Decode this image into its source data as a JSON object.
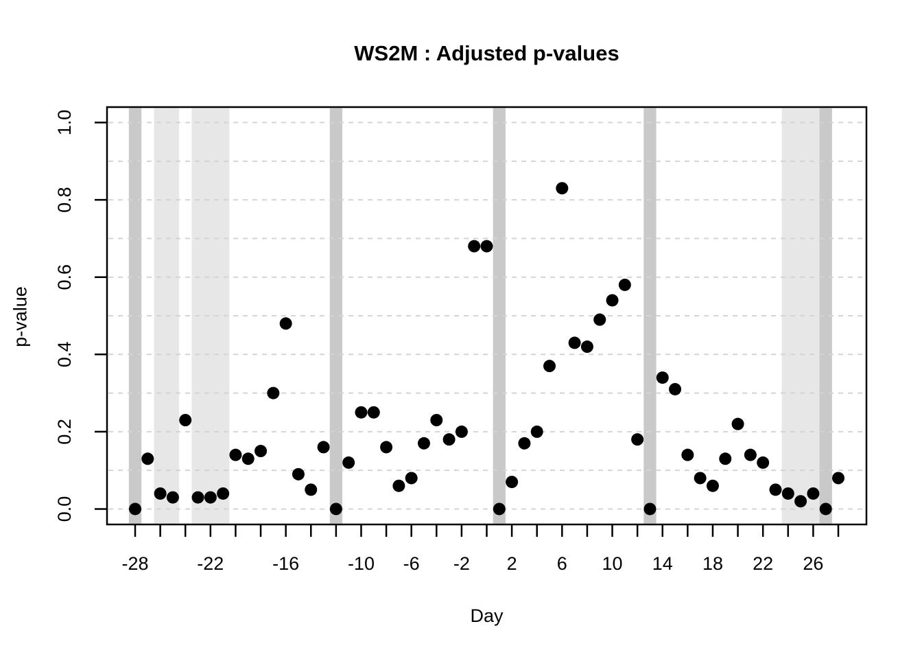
{
  "chart_data": {
    "type": "scatter",
    "title": "WS2M : Adjusted p-values",
    "xlabel": "Day",
    "ylabel": "p-value",
    "xlim": [
      -30.24,
      30.24
    ],
    "ylim": [
      -0.04,
      1.04
    ],
    "grid": true,
    "legend_position": "none",
    "x": [
      -28,
      -27,
      -26,
      -25,
      -24,
      -23,
      -22,
      -21,
      -20,
      -19,
      -18,
      -17,
      -16,
      -15,
      -14,
      -13,
      -12,
      -11,
      -10,
      -9,
      -8,
      -7,
      -6,
      -5,
      -4,
      -3,
      -2,
      -1,
      0,
      1,
      2,
      3,
      4,
      5,
      6,
      7,
      8,
      9,
      10,
      11,
      12,
      13,
      14,
      15,
      16,
      17,
      18,
      19,
      20,
      21,
      22,
      23,
      24,
      25,
      26,
      27,
      28
    ],
    "y": [
      0.0,
      0.13,
      0.04,
      0.03,
      0.23,
      0.03,
      0.03,
      0.04,
      0.14,
      0.13,
      0.15,
      0.3,
      0.48,
      0.09,
      0.05,
      0.16,
      0.0,
      0.12,
      0.25,
      0.25,
      0.16,
      0.06,
      0.08,
      0.17,
      0.23,
      0.18,
      0.2,
      0.68,
      0.68,
      0.0,
      0.07,
      0.17,
      0.2,
      0.37,
      0.83,
      0.43,
      0.42,
      0.49,
      0.54,
      0.58,
      0.18,
      0.0,
      0.34,
      0.31,
      0.14,
      0.08,
      0.06,
      0.13,
      0.22,
      0.14,
      0.12,
      0.05,
      0.04,
      0.02,
      0.04,
      0.0,
      0.08
    ],
    "x_ticks": [
      -28,
      -26,
      -24,
      -22,
      -20,
      -18,
      -16,
      -14,
      -12,
      -10,
      -8,
      -6,
      -4,
      -2,
      0,
      2,
      4,
      6,
      8,
      10,
      12,
      14,
      16,
      18,
      20,
      22,
      24,
      26,
      28
    ],
    "x_tick_labels": [
      {
        "v": -28,
        "label": "-28"
      },
      {
        "v": -22,
        "label": "-22"
      },
      {
        "v": -16,
        "label": "-16"
      },
      {
        "v": -10,
        "label": "-10"
      },
      {
        "v": -6,
        "label": "-6"
      },
      {
        "v": -2,
        "label": "-2"
      },
      {
        "v": 2,
        "label": "2"
      },
      {
        "v": 6,
        "label": "6"
      },
      {
        "v": 10,
        "label": "10"
      },
      {
        "v": 14,
        "label": "14"
      },
      {
        "v": 18,
        "label": "18"
      },
      {
        "v": 22,
        "label": "22"
      },
      {
        "v": 26,
        "label": "26"
      }
    ],
    "y_tick_labels": [
      {
        "v": 0.0,
        "label": "0.0"
      },
      {
        "v": 0.2,
        "label": "0.2"
      },
      {
        "v": 0.4,
        "label": "0.4"
      },
      {
        "v": 0.6,
        "label": "0.6"
      },
      {
        "v": 0.8,
        "label": "0.8"
      },
      {
        "v": 1.0,
        "label": "1.0"
      }
    ],
    "gridlines_y": [
      0.0,
      0.1,
      0.2,
      0.3,
      0.4,
      0.5,
      0.6,
      0.7,
      0.8,
      0.9,
      1.0
    ],
    "bands": [
      {
        "from": -28.5,
        "to": -27.5,
        "shade": "dark"
      },
      {
        "from": -26.5,
        "to": -24.5,
        "shade": "light"
      },
      {
        "from": -23.5,
        "to": -20.5,
        "shade": "light"
      },
      {
        "from": -12.5,
        "to": -11.5,
        "shade": "dark"
      },
      {
        "from": 0.5,
        "to": 1.5,
        "shade": "dark"
      },
      {
        "from": 12.5,
        "to": 13.5,
        "shade": "dark"
      },
      {
        "from": 23.5,
        "to": 26.5,
        "shade": "light"
      },
      {
        "from": 26.5,
        "to": 27.5,
        "shade": "dark"
      }
    ],
    "colors": {
      "point": "#000000",
      "grid": "#d4d4d4",
      "band_dark": "#c9c9c9",
      "band_light": "#e7e7e7",
      "axis": "#000000",
      "background": "#ffffff"
    }
  }
}
